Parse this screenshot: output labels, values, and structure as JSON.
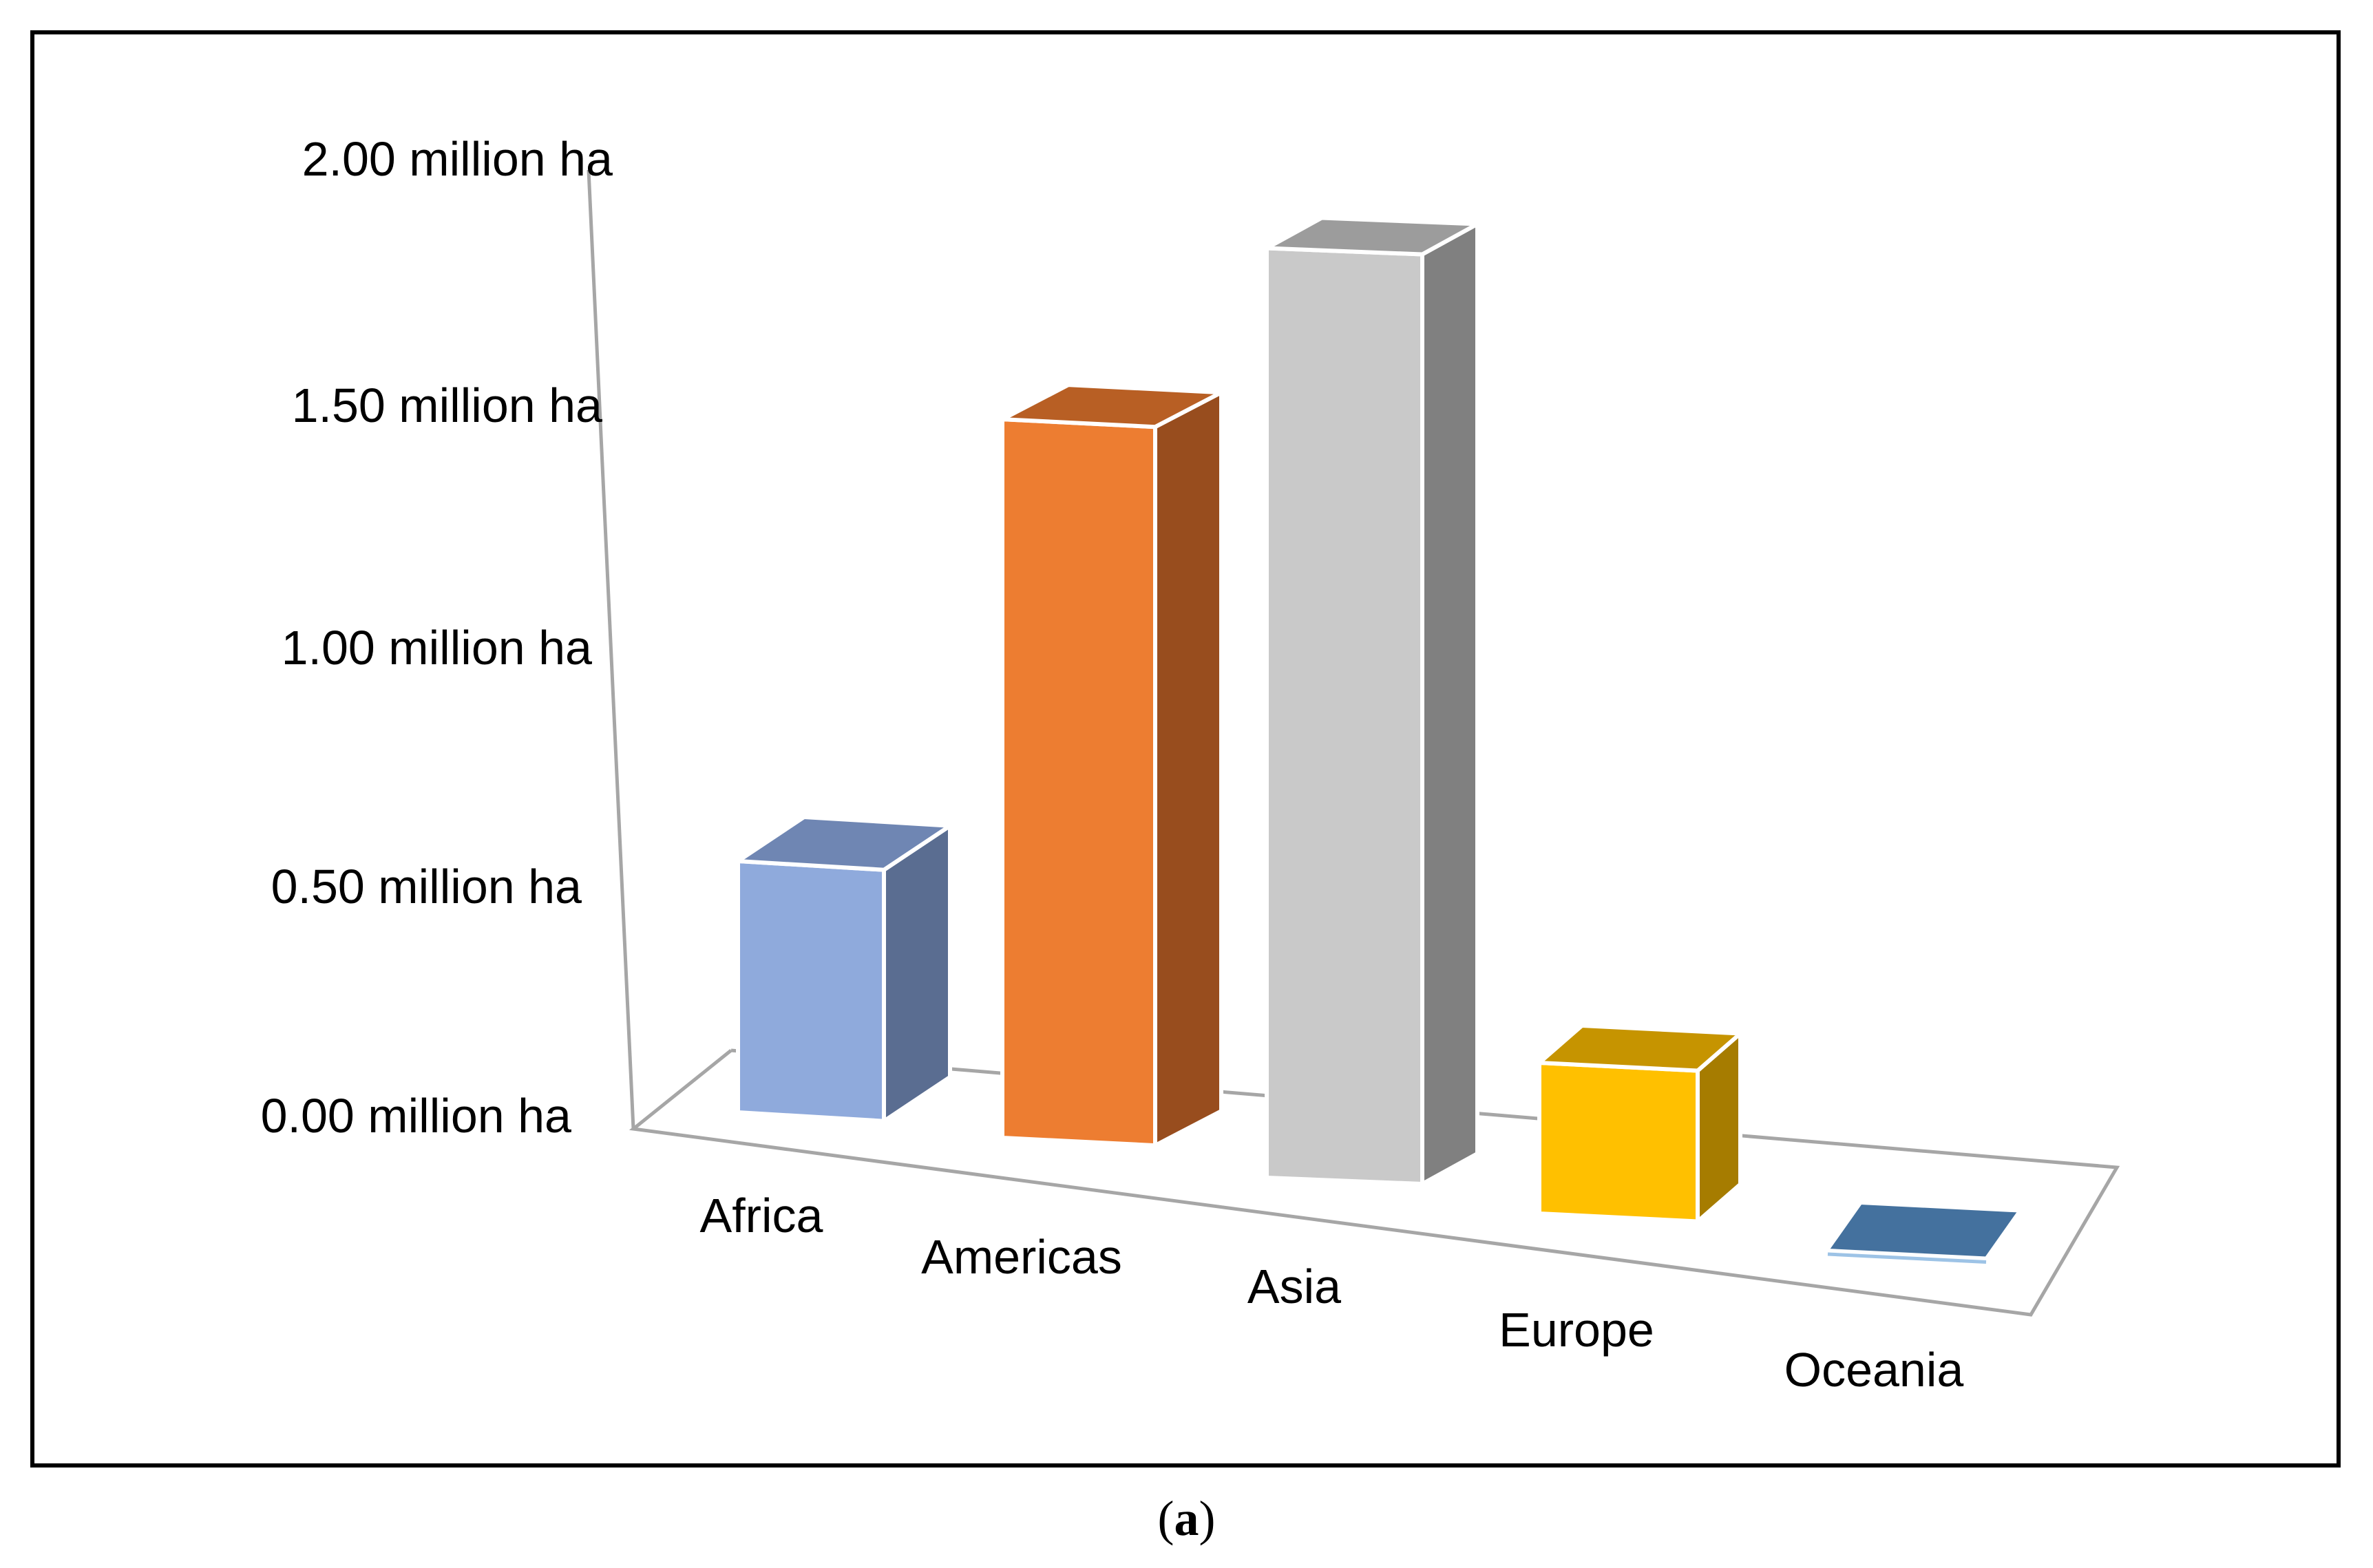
{
  "chart_data": {
    "type": "bar",
    "style": "3d-column",
    "title": "",
    "xlabel": "",
    "ylabel": "",
    "categories": [
      "Africa",
      "Americas",
      "Asia",
      "Europe",
      "Oceania"
    ],
    "values": [
      0.5,
      1.43,
      1.85,
      0.3,
      0.02
    ],
    "unit": "million ha",
    "ylim": [
      0,
      2
    ],
    "yticks": [
      "0.00 million ha",
      "0.50 million ha",
      "1.00 million ha",
      "1.50 million ha",
      "2.00 million ha"
    ],
    "grid": false,
    "legend": "none",
    "colors": {
      "Africa": {
        "front": "#8FAADC",
        "top": "#6F86B3",
        "side": "#5A6D91"
      },
      "Americas": {
        "front": "#ED7D31",
        "top": "#B85F24",
        "side": "#984D1E"
      },
      "Asia": {
        "front": "#C9C9C9",
        "top": "#9C9C9C",
        "side": "#808080"
      },
      "Europe": {
        "front": "#FFC000",
        "top": "#C69400",
        "side": "#A67C00"
      },
      "Oceania": {
        "front": "#4472A0",
        "top": "#44719E",
        "side": "#365A80"
      }
    }
  },
  "caption": {
    "open": "(",
    "letter": "a",
    "close": ")"
  }
}
